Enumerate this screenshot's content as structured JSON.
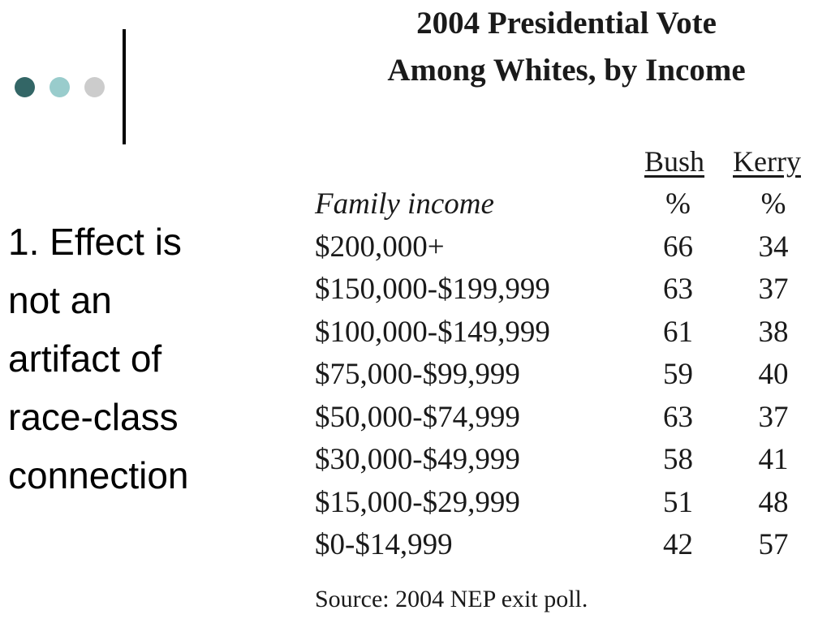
{
  "colors": {
    "dot_1": "#336666",
    "dot_2": "#99cccc",
    "dot_3": "#cccccc",
    "divider": "#000000"
  },
  "bullet": {
    "lines": [
      "1. Effect is",
      "not an",
      "artifact of",
      "race-class",
      "connection"
    ]
  },
  "figure": {
    "title_lines": [
      "2004 Presidential Vote",
      "Among Whites, by Income"
    ],
    "columns": [
      "Bush",
      "Kerry"
    ],
    "header_row": {
      "label": "Family income",
      "bush": "%",
      "kerry": "%"
    },
    "rows": [
      {
        "income": "$200,000+",
        "bush": "66",
        "kerry": "34"
      },
      {
        "income": "$150,000-$199,999",
        "bush": "63",
        "kerry": "37"
      },
      {
        "income": "$100,000-$149,999",
        "bush": "61",
        "kerry": "38"
      },
      {
        "income": "$75,000-$99,999",
        "bush": "59",
        "kerry": "40"
      },
      {
        "income": "$50,000-$74,999",
        "bush": "63",
        "kerry": "37"
      },
      {
        "income": "$30,000-$49,999",
        "bush": "58",
        "kerry": "41"
      },
      {
        "income": "$15,000-$29,999",
        "bush": "51",
        "kerry": "48"
      },
      {
        "income": "$0-$14,999",
        "bush": "42",
        "kerry": "57"
      }
    ],
    "source": "Source: 2004 NEP exit poll."
  }
}
